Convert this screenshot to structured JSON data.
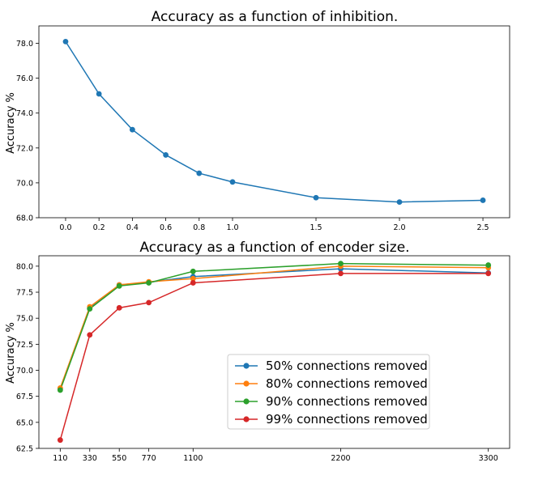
{
  "chart_data": [
    {
      "type": "line",
      "title": "Accuracy as a function of inhibition.",
      "xlabel": "",
      "ylabel": "Accuracy %",
      "xlim": [
        -0.16,
        2.66
      ],
      "ylim": [
        68.0,
        79.0
      ],
      "xticks": [
        0.0,
        0.2,
        0.4,
        0.6,
        0.8,
        1.0,
        1.5,
        2.0,
        2.5
      ],
      "xtick_labels": [
        "0.0",
        "0.2",
        "0.4",
        "0.6",
        "0.8",
        "1.0",
        "1.5",
        "2.0",
        "2.5"
      ],
      "yticks": [
        68.0,
        70.0,
        72.0,
        74.0,
        76.0,
        78.0
      ],
      "ytick_labels": [
        "68.0",
        "70.0",
        "72.0",
        "74.0",
        "76.0",
        "78.0"
      ],
      "grid": false,
      "series": [
        {
          "name": "accuracy",
          "color": "#1f77b4",
          "x": [
            0.0,
            0.2,
            0.4,
            0.6,
            0.8,
            1.0,
            1.5,
            2.0,
            2.5
          ],
          "y": [
            78.1,
            75.1,
            73.05,
            71.6,
            70.55,
            70.05,
            69.15,
            68.9,
            69.0
          ]
        }
      ]
    },
    {
      "type": "line",
      "title": "Accuracy as a function of encoder size.",
      "xlabel": "",
      "ylabel": "Accuracy %",
      "xlim": [
        -49,
        3459
      ],
      "ylim": [
        62.5,
        81.0
      ],
      "xticks": [
        110,
        330,
        550,
        770,
        1100,
        2200,
        3300
      ],
      "xtick_labels": [
        "110",
        "330",
        "550",
        "770",
        "1100",
        "2200",
        "3300"
      ],
      "yticks": [
        62.5,
        65.0,
        67.5,
        70.0,
        72.5,
        75.0,
        77.5,
        80.0
      ],
      "ytick_labels": [
        "62.5",
        "65.0",
        "67.5",
        "70.0",
        "72.5",
        "75.0",
        "77.5",
        "80.0"
      ],
      "grid": false,
      "legend_position": "lower-right",
      "series": [
        {
          "name": "50% connections removed",
          "color": "#1f77b4",
          "x": [
            110,
            330,
            550,
            770,
            1100,
            2200,
            3300
          ],
          "y": [
            68.2,
            76.0,
            78.2,
            78.45,
            79.0,
            79.75,
            79.35
          ]
        },
        {
          "name": "80% connections removed",
          "color": "#ff7f0e",
          "x": [
            110,
            330,
            550,
            770,
            1100,
            2200,
            3300
          ],
          "y": [
            68.3,
            76.1,
            78.2,
            78.5,
            78.8,
            80.0,
            79.85
          ]
        },
        {
          "name": "90% connections removed",
          "color": "#2ca02c",
          "x": [
            110,
            330,
            550,
            770,
            1100,
            2200,
            3300
          ],
          "y": [
            68.1,
            75.9,
            78.1,
            78.4,
            79.5,
            80.25,
            80.1
          ]
        },
        {
          "name": "99% connections removed",
          "color": "#d62728",
          "x": [
            110,
            330,
            550,
            770,
            1100,
            2200,
            3300
          ],
          "y": [
            63.3,
            73.4,
            76.0,
            76.5,
            78.4,
            79.3,
            79.3
          ]
        }
      ]
    }
  ]
}
